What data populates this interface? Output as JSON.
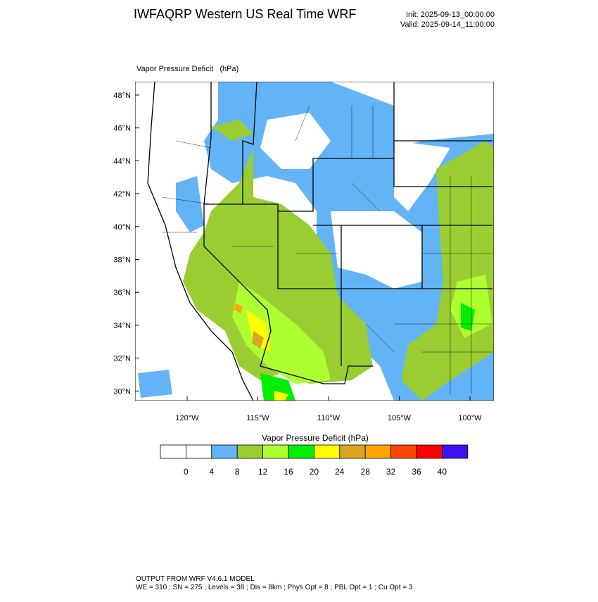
{
  "header": {
    "title": "IWFAQRP Western US Real Time WRF",
    "init": "Init: 2025-09-13_00:00:00",
    "valid": "Valid: 2025-09-14_11:00:00"
  },
  "map": {
    "field_label": "Vapor Pressure Deficit   (hPa)",
    "lat_labels": [
      "48°N",
      "46°N",
      "44°N",
      "42°N",
      "40°N",
      "38°N",
      "36°N",
      "34°N",
      "32°N",
      "30°N"
    ],
    "lon_labels": [
      "120°W",
      "115°W",
      "110°W",
      "105°W",
      "100°W"
    ]
  },
  "colorbar": {
    "title": "Vapor Pressure Deficit  (hPa)",
    "colors": [
      "#ffffff",
      "#ffffff",
      "#63b3f7",
      "#9acd32",
      "#adff2f",
      "#00ee00",
      "#ffff00",
      "#daa520",
      "#ffa500",
      "#ff4500",
      "#ff0000",
      "#4010f0"
    ],
    "labels": [
      0,
      4,
      8,
      12,
      16,
      20,
      24,
      28,
      32,
      36,
      40
    ]
  },
  "footer": {
    "line1": "OUTPUT FROM WRF V4.6.1 MODEL",
    "line2": "WE = 310 ; SN = 275 ; Levels = 38 ; Dis = 8km ; Phys Opt = 8 ; PBL Opt = 1 ; Cu Opt = 3"
  }
}
